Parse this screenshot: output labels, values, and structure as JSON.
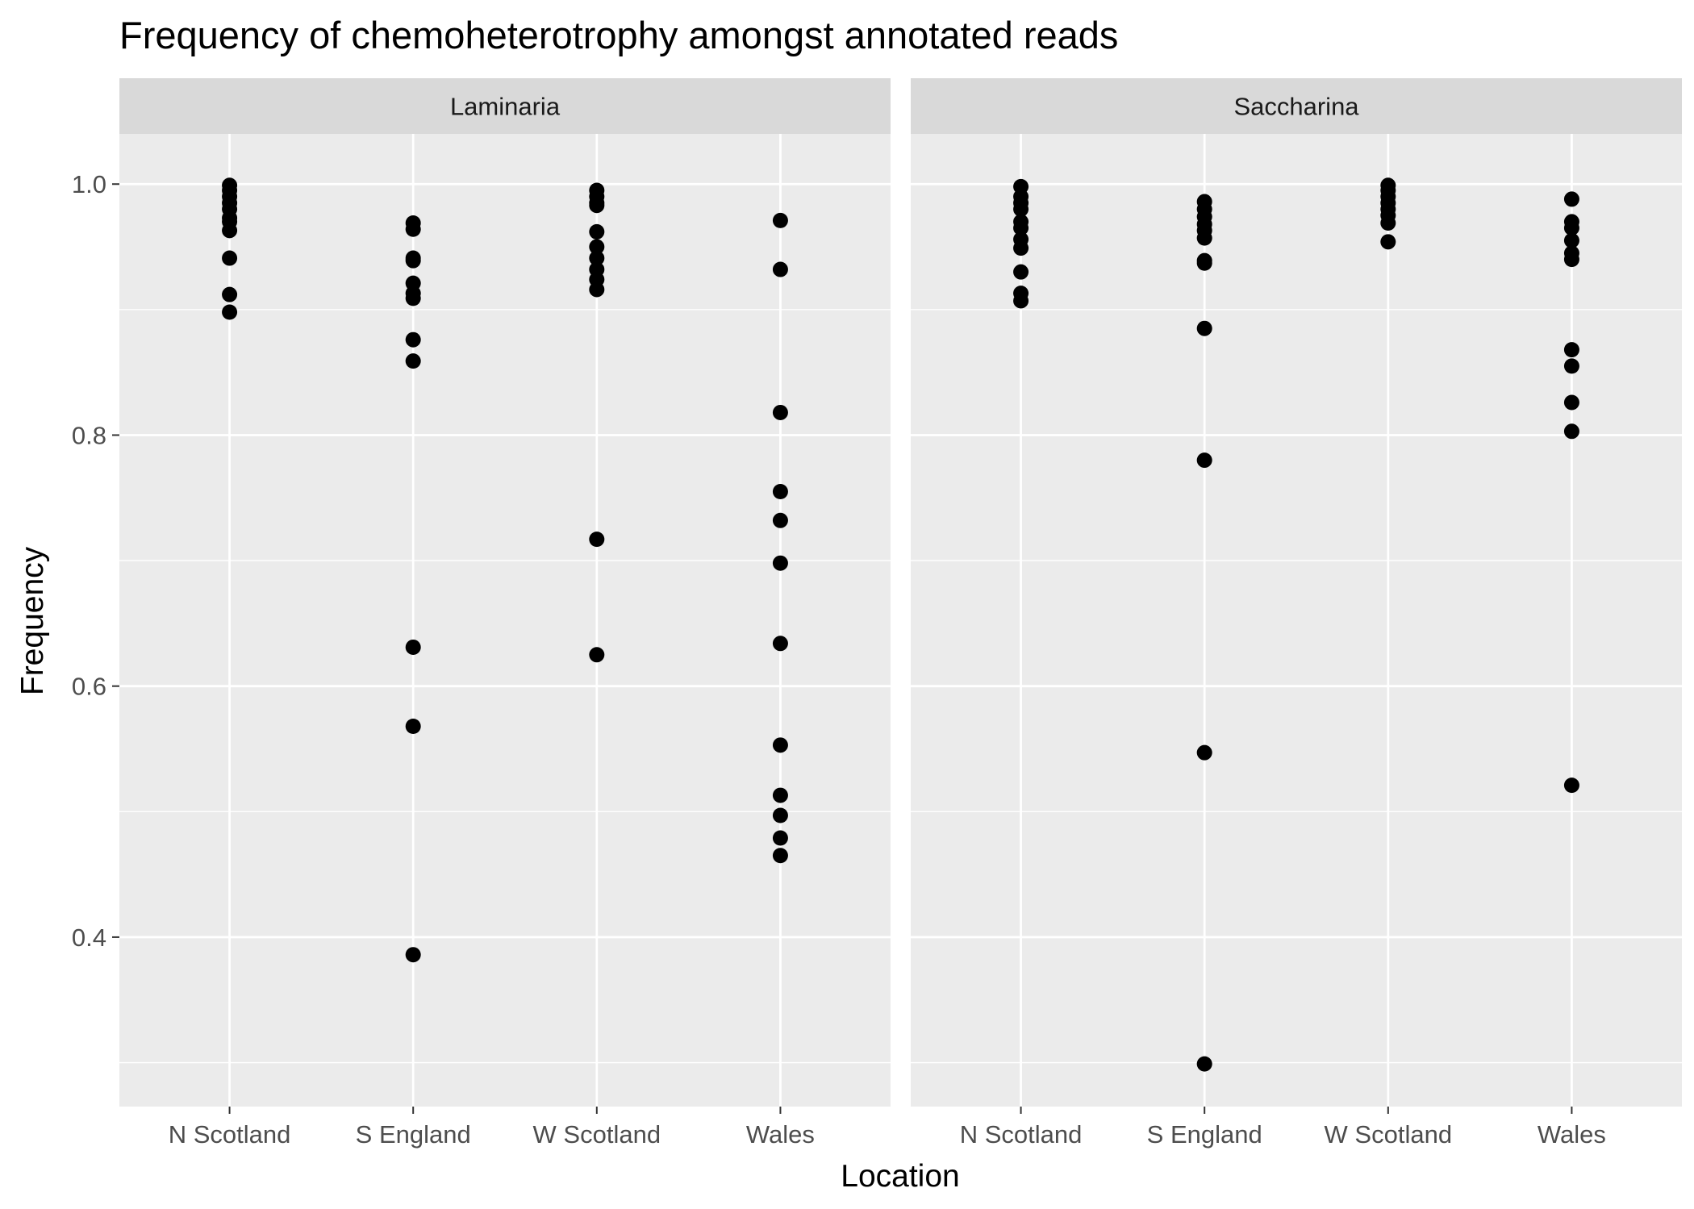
{
  "chart_data": {
    "type": "scatter",
    "title": "Frequency of chemoheterotrophy amongst annotated reads",
    "xlabel": "Location",
    "ylabel": "Frequency",
    "categories": [
      "N Scotland",
      "S England",
      "W Scotland",
      "Wales"
    ],
    "ylim": [
      0.265,
      1.04
    ],
    "yticks": [
      0.4,
      0.6,
      0.8,
      1.0
    ],
    "ytick_labels": [
      "0.4",
      "0.6",
      "0.8",
      "1.0"
    ],
    "grid": true,
    "legend": "none",
    "colors": {
      "panel_background": "#ebebeb",
      "strip_background": "#d9d9d9",
      "grid": "#ffffff",
      "point": "#000000",
      "tick": "#333333"
    },
    "facets": [
      {
        "label": "Laminaria",
        "series": [
          {
            "location": "N Scotland",
            "values": [
              0.999,
              0.995,
              0.99,
              0.985,
              0.98,
              0.973,
              0.97,
              0.963,
              0.941,
              0.912,
              0.898
            ]
          },
          {
            "location": "S England",
            "values": [
              0.969,
              0.964,
              0.941,
              0.939,
              0.921,
              0.913,
              0.909,
              0.876,
              0.859,
              0.631,
              0.568,
              0.386
            ]
          },
          {
            "location": "W Scotland",
            "values": [
              0.995,
              0.99,
              0.985,
              0.983,
              0.962,
              0.95,
              0.941,
              0.932,
              0.924,
              0.916,
              0.717,
              0.625
            ]
          },
          {
            "location": "Wales",
            "values": [
              0.971,
              0.932,
              0.818,
              0.755,
              0.732,
              0.698,
              0.634,
              0.553,
              0.513,
              0.497,
              0.479,
              0.465
            ]
          }
        ]
      },
      {
        "label": "Saccharina",
        "series": [
          {
            "location": "N Scotland",
            "values": [
              0.998,
              0.99,
              0.985,
              0.98,
              0.97,
              0.965,
              0.956,
              0.949,
              0.93,
              0.913,
              0.907
            ]
          },
          {
            "location": "S England",
            "values": [
              0.986,
              0.98,
              0.974,
              0.968,
              0.963,
              0.957,
              0.939,
              0.937,
              0.885,
              0.78,
              0.547,
              0.299
            ]
          },
          {
            "location": "W Scotland",
            "values": [
              0.999,
              0.995,
              0.99,
              0.985,
              0.98,
              0.975,
              0.969,
              0.954
            ]
          },
          {
            "location": "Wales",
            "values": [
              0.988,
              0.97,
              0.965,
              0.955,
              0.945,
              0.94,
              0.868,
              0.855,
              0.826,
              0.803,
              0.521
            ]
          }
        ]
      }
    ]
  }
}
